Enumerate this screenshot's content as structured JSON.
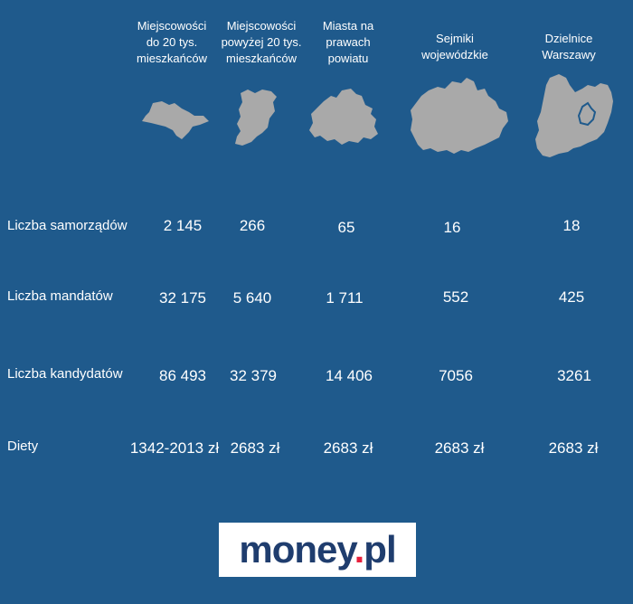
{
  "columns": [
    {
      "label": "Miejscowości do 20 tys. mieszkańców",
      "line1": "Miejscowości",
      "line2": "do 20 tys.",
      "line3": "mieszkańców"
    },
    {
      "label": "Miejscowości powyżej 20 tys. mieszkańców",
      "line1": "Miejscowości",
      "line2": "powyżej 20 tys.",
      "line3": "mieszkańców"
    },
    {
      "label": "Miasta na prawach powiatu",
      "line1": "Miasta na",
      "line2": "prawach",
      "line3": "powiatu"
    },
    {
      "label": "Sejmiki wojewódzkie",
      "line1": "Sejmiki",
      "line2": "wojewódzkie"
    },
    {
      "label": "Dzielnice Warszawy",
      "line1": "Dzielnice",
      "line2": "Warszawy"
    }
  ],
  "rows": [
    {
      "label": "Liczba samorządów",
      "values": [
        "2 145",
        "266",
        "65",
        "16",
        "18"
      ]
    },
    {
      "label": "Liczba mandatów",
      "values": [
        "32 175",
        "5 640",
        "1 711",
        "552",
        "425"
      ]
    },
    {
      "label": "Liczba kandydatów",
      "values": [
        "86 493",
        "32 379",
        "14 406",
        "7056",
        "3261"
      ]
    },
    {
      "label": "Diety",
      "values": [
        "1342-2013 zł",
        "2683 zł",
        "2683 zł",
        "2683 zł",
        "2683 zł"
      ]
    }
  ],
  "logo": {
    "main": "money",
    "dot": ".",
    "suffix": "pl"
  },
  "colors": {
    "background": "#1f5a8c",
    "shape": "#a9a9a9",
    "logo_text": "#1f3d6e",
    "logo_dot": "#e8203c"
  }
}
